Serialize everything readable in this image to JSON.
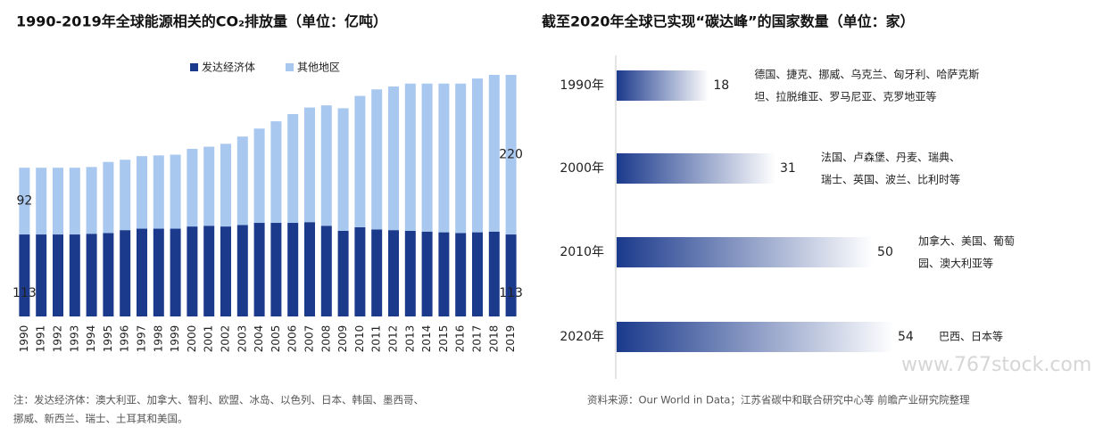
{
  "chart_data": [
    {
      "type": "stacked_bar",
      "title": "1990-2019年全球能源相关的CO₂排放量（单位：亿吨）",
      "categories": [
        "1990",
        "1991",
        "1992",
        "1993",
        "1994",
        "1995",
        "1996",
        "1997",
        "1998",
        "1999",
        "2000",
        "2001",
        "2002",
        "2003",
        "2004",
        "2005",
        "2006",
        "2007",
        "2008",
        "2009",
        "2010",
        "2011",
        "2012",
        "2013",
        "2014",
        "2015",
        "2016",
        "2017",
        "2018",
        "2019"
      ],
      "series": [
        {
          "name": "发达经济体",
          "color": "#1b3a8c",
          "values": [
            113,
            113,
            113,
            113,
            114,
            115,
            119,
            121,
            121,
            121,
            124,
            125,
            124,
            126,
            129,
            129,
            129,
            130,
            125,
            118,
            123,
            120,
            119,
            118,
            117,
            116,
            115,
            116,
            117,
            113
          ],
          "value_labels": [
            113,
            null,
            null,
            null,
            null,
            null,
            null,
            null,
            null,
            null,
            null,
            null,
            null,
            null,
            null,
            null,
            null,
            null,
            null,
            null,
            null,
            null,
            null,
            null,
            null,
            null,
            null,
            null,
            null,
            113
          ]
        },
        {
          "name": "其他地区",
          "color": "#a9c8f0",
          "values": [
            92,
            92,
            92,
            92,
            92,
            98,
            97,
            100,
            101,
            102,
            107,
            109,
            114,
            122,
            130,
            140,
            150,
            158,
            166,
            169,
            181,
            193,
            198,
            203,
            204,
            205,
            206,
            212,
            216,
            220
          ],
          "value_labels": [
            92,
            null,
            null,
            null,
            null,
            null,
            null,
            null,
            null,
            null,
            null,
            null,
            null,
            null,
            null,
            null,
            null,
            null,
            null,
            null,
            null,
            null,
            null,
            null,
            null,
            null,
            null,
            null,
            null,
            220
          ]
        }
      ],
      "note": [
        "注：发达经济体：澳大利亚、加拿大、智利、欧盟、冰岛、以色列、日本、韩国、墨西哥、",
        "挪威、新西兰、瑞士、土耳其和美国。"
      ]
    },
    {
      "type": "barh",
      "title": "截至2020年全球已实现“碳达峰”的国家数量（单位：家）",
      "categories": [
        "1990年",
        "2000年",
        "2010年",
        "2020年"
      ],
      "values": [
        18,
        31,
        50,
        54
      ],
      "color": "#1b3a8c",
      "annotations": [
        [
          "德国、捷克、挪威、乌克兰、匈牙利、哈萨克斯",
          "坦、拉脱维亚、罗马尼亚、克罗地亚等"
        ],
        [
          "法国、卢森堡、丹麦、瑞典、",
          "瑞士、英国、波兰、比利时等"
        ],
        [
          "加拿大、美国、葡萄",
          "园、澳大利亚等"
        ],
        [
          "巴西、日本等"
        ]
      ],
      "source": "资料来源：Our World in Data；江苏省碳中和联合研究中心等 前瞻产业研究院整理",
      "watermark": "www.767stock.com"
    }
  ]
}
